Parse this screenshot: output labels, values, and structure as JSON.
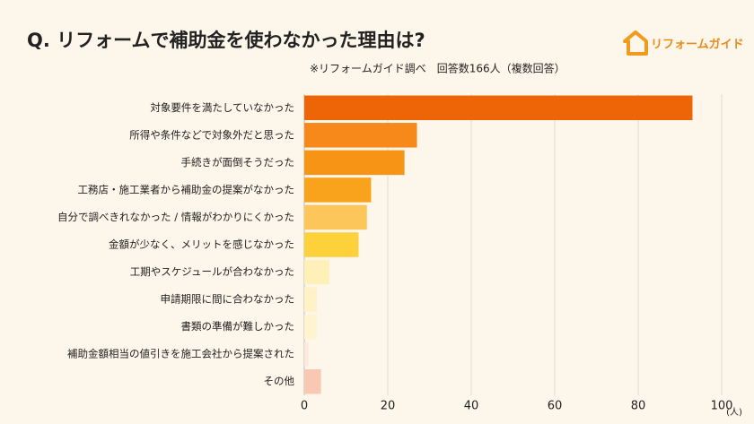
{
  "chart_data": {
    "type": "barh",
    "title": "Q. リフォームで補助金を使わなかった理由は?",
    "subtitle": "※リフォームガイド調べ　回答数166人（複数回答）",
    "brand": "リフォームガイド",
    "xlabel": "(人)",
    "categories": [
      "対象要件を満たしていなかった",
      "所得や条件などで対象外だと思った",
      "手続きが面倒そうだった",
      "工務店・施工業者から補助金の提案がなかった",
      "自分で調べきれなかった / 情報がわかりにくかった",
      "金額が少なく、メリットを感じなかった",
      "工期やスケジュールが合わなかった",
      "申請期限に間に合わなかった",
      "書類の準備が難しかった",
      "補助金額相当の値引きを施工会社から提案された",
      "その他"
    ],
    "values": [
      93,
      27,
      24,
      16,
      15,
      13,
      6,
      3,
      3,
      1,
      4
    ],
    "colors": [
      "#ee6508",
      "#f6891a",
      "#f79416",
      "#f9a21c",
      "#fcc65a",
      "#fdd13a",
      "#fff0b8",
      "#fff2c6",
      "#fff3d0",
      "#fde9dc",
      "#f8c8b2"
    ],
    "xlim": [
      0,
      100
    ],
    "xticks": [
      0,
      20,
      40,
      60,
      80,
      100
    ],
    "grid": true
  }
}
